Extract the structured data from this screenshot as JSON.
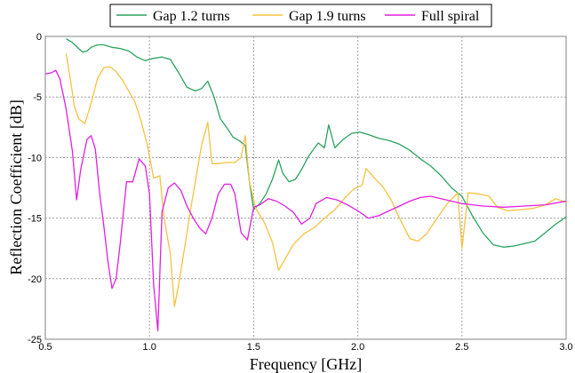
{
  "chart_data": {
    "type": "line",
    "title": "",
    "xlabel": "Frequency [GHz]",
    "ylabel": "Reflection Coefficient [dB]",
    "xlim": [
      0.5,
      3.0
    ],
    "ylim": [
      -25,
      0
    ],
    "x_ticks": [
      0.5,
      1.0,
      1.5,
      2.0,
      2.5,
      3.0
    ],
    "x_tick_labels": [
      "0.5",
      "1.0",
      "1.5",
      "2.0",
      "2.5",
      "3.0"
    ],
    "y_ticks": [
      0,
      -5,
      -10,
      -15,
      -20,
      -25
    ],
    "y_tick_labels": [
      "0",
      "-5",
      "-10",
      "-15",
      "-20",
      "-25"
    ],
    "grid": true,
    "grid_style": "dashed",
    "legend_position": "top-center",
    "series": [
      {
        "name": "Gap 1.2 turns",
        "color": "#2ca25f",
        "points": [
          [
            0.6,
            -0.2
          ],
          [
            0.63,
            -0.5
          ],
          [
            0.66,
            -1.0
          ],
          [
            0.68,
            -1.3
          ],
          [
            0.7,
            -1.2
          ],
          [
            0.72,
            -0.9
          ],
          [
            0.75,
            -0.7
          ],
          [
            0.78,
            -0.7
          ],
          [
            0.82,
            -0.9
          ],
          [
            0.86,
            -1.0
          ],
          [
            0.9,
            -1.2
          ],
          [
            0.94,
            -1.7
          ],
          [
            0.98,
            -2.0
          ],
          [
            1.02,
            -1.8
          ],
          [
            1.06,
            -1.7
          ],
          [
            1.1,
            -1.9
          ],
          [
            1.14,
            -3.0
          ],
          [
            1.18,
            -4.2
          ],
          [
            1.22,
            -4.5
          ],
          [
            1.25,
            -4.3
          ],
          [
            1.28,
            -3.7
          ],
          [
            1.31,
            -5.0
          ],
          [
            1.34,
            -6.8
          ],
          [
            1.37,
            -7.5
          ],
          [
            1.4,
            -8.3
          ],
          [
            1.43,
            -8.6
          ],
          [
            1.46,
            -9.0
          ],
          [
            1.48,
            -12.0
          ],
          [
            1.5,
            -14.3
          ],
          [
            1.53,
            -13.8
          ],
          [
            1.56,
            -13.0
          ],
          [
            1.59,
            -11.8
          ],
          [
            1.62,
            -10.2
          ],
          [
            1.64,
            -11.3
          ],
          [
            1.67,
            -12.0
          ],
          [
            1.7,
            -11.8
          ],
          [
            1.73,
            -11.0
          ],
          [
            1.76,
            -10.0
          ],
          [
            1.78,
            -9.5
          ],
          [
            1.81,
            -8.8
          ],
          [
            1.84,
            -9.2
          ],
          [
            1.86,
            -7.3
          ],
          [
            1.89,
            -9.2
          ],
          [
            1.93,
            -8.5
          ],
          [
            1.97,
            -8.0
          ],
          [
            2.01,
            -7.9
          ],
          [
            2.05,
            -8.1
          ],
          [
            2.1,
            -8.4
          ],
          [
            2.15,
            -8.6
          ],
          [
            2.2,
            -8.9
          ],
          [
            2.25,
            -9.4
          ],
          [
            2.3,
            -10.1
          ],
          [
            2.35,
            -10.7
          ],
          [
            2.4,
            -11.5
          ],
          [
            2.45,
            -12.5
          ],
          [
            2.5,
            -13.2
          ],
          [
            2.55,
            -14.8
          ],
          [
            2.6,
            -16.2
          ],
          [
            2.65,
            -17.2
          ],
          [
            2.7,
            -17.4
          ],
          [
            2.75,
            -17.3
          ],
          [
            2.8,
            -17.1
          ],
          [
            2.85,
            -16.9
          ],
          [
            2.9,
            -16.2
          ],
          [
            2.95,
            -15.5
          ],
          [
            3.0,
            -14.9
          ]
        ]
      },
      {
        "name": "Gap 1.9 turns",
        "color": "#f5c242",
        "points": [
          [
            0.6,
            -1.4
          ],
          [
            0.62,
            -3.5
          ],
          [
            0.64,
            -5.8
          ],
          [
            0.66,
            -6.8
          ],
          [
            0.69,
            -7.2
          ],
          [
            0.72,
            -5.5
          ],
          [
            0.75,
            -3.5
          ],
          [
            0.78,
            -2.6
          ],
          [
            0.81,
            -2.5
          ],
          [
            0.84,
            -2.9
          ],
          [
            0.87,
            -3.6
          ],
          [
            0.9,
            -4.5
          ],
          [
            0.93,
            -5.4
          ],
          [
            0.96,
            -7.0
          ],
          [
            0.99,
            -9.0
          ],
          [
            1.02,
            -11.7
          ],
          [
            1.05,
            -11.5
          ],
          [
            1.07,
            -15.0
          ],
          [
            1.1,
            -17.9
          ],
          [
            1.12,
            -22.3
          ],
          [
            1.14,
            -20.5
          ],
          [
            1.17,
            -17.3
          ],
          [
            1.2,
            -14.0
          ],
          [
            1.23,
            -11.0
          ],
          [
            1.25,
            -9.0
          ],
          [
            1.28,
            -7.1
          ],
          [
            1.3,
            -10.5
          ],
          [
            1.33,
            -10.5
          ],
          [
            1.37,
            -10.4
          ],
          [
            1.41,
            -10.4
          ],
          [
            1.44,
            -10.0
          ],
          [
            1.46,
            -8.2
          ],
          [
            1.48,
            -12.0
          ],
          [
            1.51,
            -14.2
          ],
          [
            1.55,
            -15.3
          ],
          [
            1.59,
            -17.0
          ],
          [
            1.62,
            -19.3
          ],
          [
            1.65,
            -18.4
          ],
          [
            1.69,
            -17.2
          ],
          [
            1.74,
            -16.3
          ],
          [
            1.79,
            -15.8
          ],
          [
            1.84,
            -15.0
          ],
          [
            1.89,
            -14.3
          ],
          [
            1.94,
            -13.3
          ],
          [
            1.98,
            -12.6
          ],
          [
            2.02,
            -12.3
          ],
          [
            2.04,
            -10.9
          ],
          [
            2.06,
            -11.3
          ],
          [
            2.08,
            -11.7
          ],
          [
            2.12,
            -12.4
          ],
          [
            2.16,
            -13.5
          ],
          [
            2.2,
            -15.0
          ],
          [
            2.25,
            -16.7
          ],
          [
            2.29,
            -16.9
          ],
          [
            2.33,
            -16.3
          ],
          [
            2.38,
            -15.0
          ],
          [
            2.43,
            -13.8
          ],
          [
            2.48,
            -12.9
          ],
          [
            2.5,
            -17.5
          ],
          [
            2.53,
            -12.9
          ],
          [
            2.58,
            -13.0
          ],
          [
            2.63,
            -13.2
          ],
          [
            2.67,
            -14.1
          ],
          [
            2.72,
            -14.4
          ],
          [
            2.78,
            -14.3
          ],
          [
            2.84,
            -14.2
          ],
          [
            2.9,
            -13.9
          ],
          [
            2.95,
            -13.4
          ],
          [
            3.0,
            -13.7
          ]
        ]
      },
      {
        "name": "Full spiral",
        "color": "#e020e0",
        "points": [
          [
            0.5,
            -3.1
          ],
          [
            0.53,
            -3.0
          ],
          [
            0.55,
            -2.8
          ],
          [
            0.57,
            -3.5
          ],
          [
            0.6,
            -6.0
          ],
          [
            0.63,
            -9.5
          ],
          [
            0.65,
            -13.5
          ],
          [
            0.67,
            -11.0
          ],
          [
            0.7,
            -8.5
          ],
          [
            0.72,
            -8.2
          ],
          [
            0.74,
            -9.3
          ],
          [
            0.76,
            -12.8
          ],
          [
            0.78,
            -15.5
          ],
          [
            0.8,
            -18.5
          ],
          [
            0.82,
            -20.8
          ],
          [
            0.84,
            -20.0
          ],
          [
            0.86,
            -17.0
          ],
          [
            0.89,
            -12.0
          ],
          [
            0.92,
            -12.0
          ],
          [
            0.95,
            -10.1
          ],
          [
            0.98,
            -10.7
          ],
          [
            1.0,
            -13.0
          ],
          [
            1.02,
            -20.5
          ],
          [
            1.04,
            -24.3
          ],
          [
            1.06,
            -14.5
          ],
          [
            1.09,
            -12.5
          ],
          [
            1.12,
            -12.1
          ],
          [
            1.15,
            -12.7
          ],
          [
            1.18,
            -14.0
          ],
          [
            1.21,
            -15.0
          ],
          [
            1.24,
            -15.8
          ],
          [
            1.27,
            -16.3
          ],
          [
            1.3,
            -15.0
          ],
          [
            1.33,
            -13.0
          ],
          [
            1.36,
            -12.2
          ],
          [
            1.39,
            -12.2
          ],
          [
            1.41,
            -13.0
          ],
          [
            1.44,
            -16.2
          ],
          [
            1.47,
            -16.8
          ],
          [
            1.5,
            -14.1
          ],
          [
            1.53,
            -13.9
          ],
          [
            1.57,
            -13.4
          ],
          [
            1.61,
            -13.6
          ],
          [
            1.65,
            -14.0
          ],
          [
            1.69,
            -14.5
          ],
          [
            1.73,
            -15.5
          ],
          [
            1.77,
            -15.0
          ],
          [
            1.8,
            -13.8
          ],
          [
            1.85,
            -13.3
          ],
          [
            1.9,
            -13.5
          ],
          [
            1.95,
            -13.9
          ],
          [
            2.0,
            -14.4
          ],
          [
            2.05,
            -15.0
          ],
          [
            2.1,
            -14.8
          ],
          [
            2.15,
            -14.4
          ],
          [
            2.2,
            -14.0
          ],
          [
            2.25,
            -13.6
          ],
          [
            2.3,
            -13.3
          ],
          [
            2.35,
            -13.2
          ],
          [
            2.4,
            -13.4
          ],
          [
            2.45,
            -13.6
          ],
          [
            2.5,
            -13.8
          ],
          [
            2.55,
            -13.9
          ],
          [
            2.6,
            -14.0
          ],
          [
            2.7,
            -14.1
          ],
          [
            2.8,
            -14.0
          ],
          [
            2.9,
            -13.9
          ],
          [
            3.0,
            -13.6
          ]
        ]
      }
    ]
  }
}
